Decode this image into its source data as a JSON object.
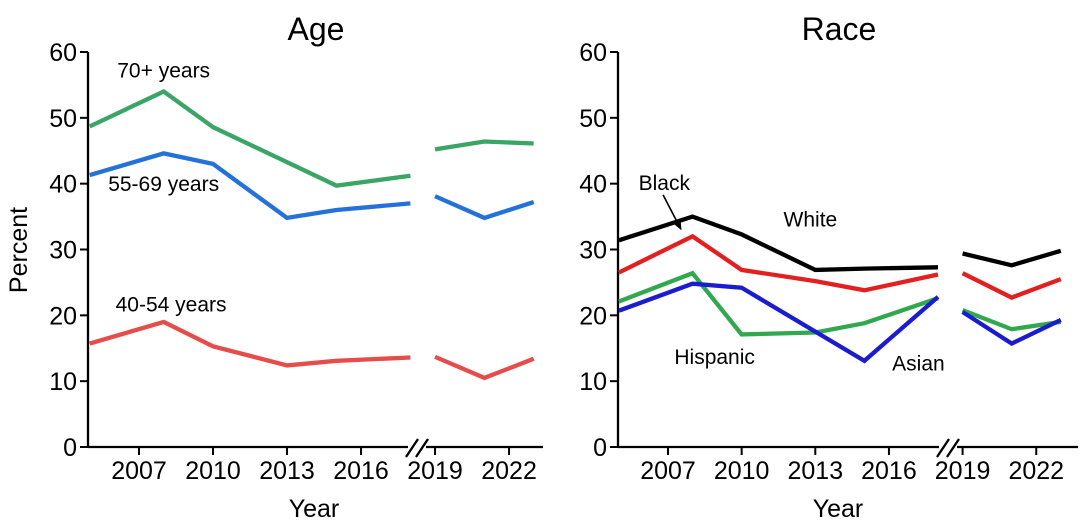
{
  "figure": {
    "background": "#ffffff",
    "axis_color": "#000000",
    "y_axis_label": "Percent",
    "x_axis_label": "Year"
  },
  "chart_data": [
    {
      "type": "line",
      "title": "Age",
      "xlabel": "Year",
      "ylabel": "Percent",
      "ylim": [
        0,
        60
      ],
      "y_ticks": [
        0,
        10,
        20,
        30,
        40,
        50,
        60
      ],
      "x_ticks": [
        2007,
        2010,
        2013,
        2016,
        2019,
        2022
      ],
      "x_range": [
        2005,
        2023.4
      ],
      "grid": false,
      "legend": "inline-labels",
      "axis_break": {
        "glyph": "//",
        "between_years": [
          2018,
          2019
        ]
      },
      "series": [
        {
          "name": "40-54 years",
          "color": "#e54d4b",
          "segments": [
            {
              "x": [
                2005,
                2008,
                2010,
                2013,
                2015,
                2018
              ],
              "y": [
                15.7,
                19.0,
                15.3,
                12.4,
                13.1,
                13.6
              ]
            },
            {
              "x": [
                2019,
                2021,
                2023
              ],
              "y": [
                13.7,
                10.5,
                13.4
              ]
            }
          ]
        },
        {
          "name": "55-69 years",
          "color": "#2472d9",
          "segments": [
            {
              "x": [
                2005,
                2008,
                2010,
                2013,
                2015,
                2018
              ],
              "y": [
                41.3,
                44.6,
                43.0,
                34.8,
                36.0,
                37.0
              ]
            },
            {
              "x": [
                2019,
                2021,
                2023
              ],
              "y": [
                38.1,
                34.8,
                37.2
              ]
            }
          ]
        },
        {
          "name": "70+ years",
          "color": "#3ba566",
          "segments": [
            {
              "x": [
                2005,
                2008,
                2010,
                2015,
                2018
              ],
              "y": [
                48.7,
                54.0,
                48.6,
                39.7,
                41.2
              ]
            },
            {
              "x": [
                2019,
                2021,
                2023
              ],
              "y": [
                45.2,
                46.4,
                46.1
              ]
            }
          ]
        }
      ],
      "annotations": [
        {
          "text": "70+ years",
          "x": 2008.0,
          "y": 57.1
        },
        {
          "text": "55-69 years",
          "x": 2008.0,
          "y": 39.9
        },
        {
          "text": "40-54 years",
          "x": 2008.3,
          "y": 21.6
        }
      ]
    },
    {
      "type": "line",
      "title": "Race",
      "xlabel": "Year",
      "ylabel": "",
      "ylim": [
        0,
        60
      ],
      "y_ticks": [
        0,
        10,
        20,
        30,
        40,
        50,
        60
      ],
      "x_ticks": [
        2007,
        2010,
        2013,
        2016,
        2019,
        2022
      ],
      "x_range": [
        2005,
        2023.7
      ],
      "grid": false,
      "legend": "inline-labels",
      "axis_break": {
        "glyph": "//",
        "between_years": [
          2018,
          2019
        ]
      },
      "series": [
        {
          "name": "Hispanic",
          "color": "#32a84e",
          "segments": [
            {
              "x": [
                2005,
                2008,
                2010,
                2013,
                2015,
                2018
              ],
              "y": [
                22.1,
                26.4,
                17.1,
                17.4,
                18.8,
                22.6
              ]
            },
            {
              "x": [
                2019,
                2021,
                2023
              ],
              "y": [
                20.8,
                17.9,
                19.0
              ]
            }
          ]
        },
        {
          "name": "Asian",
          "color": "#1b1bd0",
          "segments": [
            {
              "x": [
                2005,
                2008,
                2010,
                2015,
                2018
              ],
              "y": [
                20.7,
                24.8,
                24.2,
                13.1,
                22.8
              ]
            },
            {
              "x": [
                2019,
                2021,
                2023
              ],
              "y": [
                20.5,
                15.7,
                19.3
              ]
            }
          ]
        },
        {
          "name": "Black",
          "color": "#e31f1f",
          "segments": [
            {
              "x": [
                2005,
                2008,
                2010,
                2013,
                2015,
                2018
              ],
              "y": [
                26.5,
                32.0,
                26.9,
                25.2,
                23.8,
                26.2
              ]
            },
            {
              "x": [
                2019,
                2021,
                2023
              ],
              "y": [
                26.4,
                22.7,
                25.5
              ]
            }
          ]
        },
        {
          "name": "White",
          "color": "#000000",
          "segments": [
            {
              "x": [
                2005,
                2008,
                2010,
                2013,
                2015,
                2018
              ],
              "y": [
                31.4,
                35.0,
                32.3,
                26.9,
                27.1,
                27.3
              ]
            },
            {
              "x": [
                2019,
                2021,
                2023
              ],
              "y": [
                29.4,
                27.6,
                29.8
              ]
            }
          ]
        }
      ],
      "annotations": [
        {
          "text": "Black",
          "x": 2006.85,
          "y": 40.0,
          "arrow": {
            "x1": 2006.8,
            "y1": 38.3,
            "x2": 2007.55,
            "y2": 32.9
          }
        },
        {
          "text": "White",
          "x": 2012.8,
          "y": 34.5
        },
        {
          "text": "Hispanic",
          "x": 2008.9,
          "y": 13.6
        },
        {
          "text": "Asian",
          "x": 2017.2,
          "y": 12.6
        }
      ]
    }
  ]
}
